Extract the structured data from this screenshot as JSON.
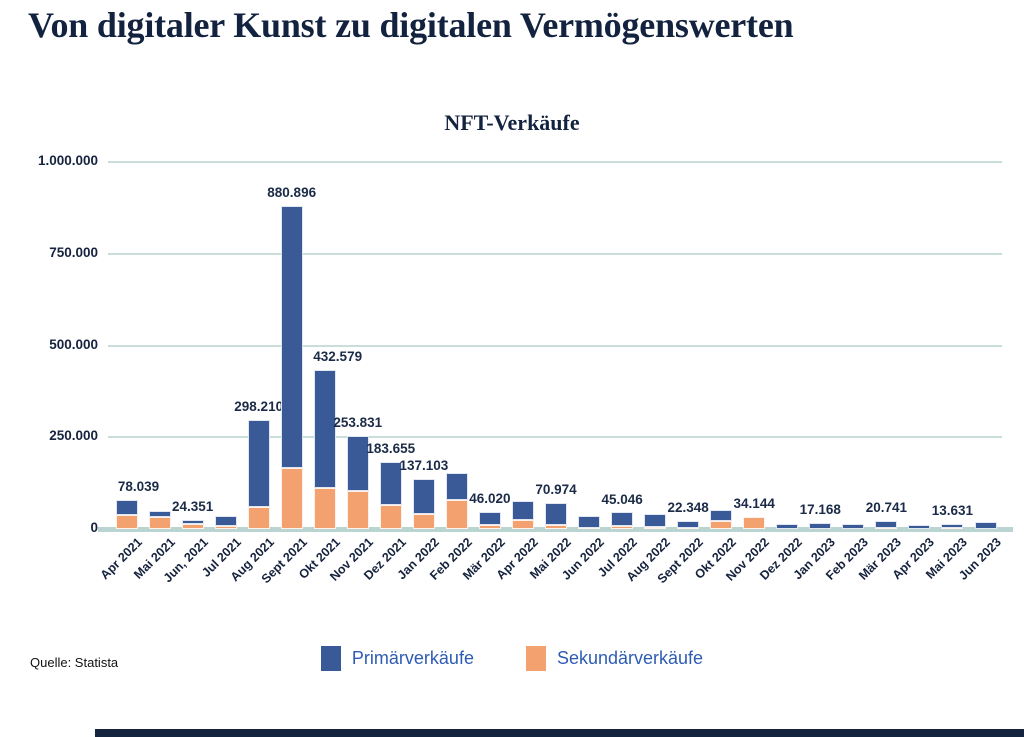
{
  "page": {
    "title": "Von digitaler Kunst zu digitalen Vermögenswerten",
    "source": "Quelle: Statista"
  },
  "colors": {
    "primary_bar": "#3a5a97",
    "secondary_bar": "#f2a16f",
    "title_text": "#13233f",
    "grid_line": "#c9dedb",
    "axis_line": "#b9d4d1",
    "legend_text": "#2e5cb4",
    "footer_bar": "#14243e"
  },
  "chart_data": {
    "type": "bar",
    "stacked": true,
    "title": "NFT-Verkäufe",
    "xlabel": "",
    "ylabel": "",
    "ylim": [
      0,
      1000000
    ],
    "grid": true,
    "legend_position": "bottom",
    "y_ticks": [
      "0",
      "250.000",
      "500.000",
      "750.000",
      "1.000.000"
    ],
    "categories": [
      "Apr 2021",
      "Mai 2021",
      "Jun, 2021",
      "Jul 2021",
      "Aug 2021",
      "Sept 2021",
      "Okt 2021",
      "Nov 2021",
      "Dez 2021",
      "Jan 2022",
      "Feb 2022",
      "Mär 2022",
      "Apr 2022",
      "Mai 2022",
      "Jun 2022",
      "Jul 2022",
      "Aug 2022",
      "Sept 2022",
      "Okt 2022",
      "Nov 2022",
      "Dez 2022",
      "Jan 2023",
      "Feb 2023",
      "Mär 2023",
      "Apr 2023",
      "Mai 2023",
      "Jun 2023"
    ],
    "series": [
      {
        "name": "Primärverkäufe",
        "color": "#3a5a97",
        "values": [
          39039,
          17000,
          9351,
          27000,
          237210,
          715896,
          320579,
          149831,
          118655,
          97103,
          75000,
          34020,
          50000,
          59974,
          32000,
          38046,
          36000,
          20848,
          31000,
          0,
          15000,
          17168,
          14000,
          16741,
          10000,
          11631,
          18000
        ]
      },
      {
        "name": "Sekundärverkäufe",
        "color": "#f2a16f",
        "values": [
          39000,
          32000,
          15000,
          8000,
          61000,
          165000,
          112000,
          104000,
          65000,
          40000,
          78000,
          12000,
          26000,
          11000,
          3000,
          7000,
          6000,
          1500,
          22000,
          34144,
          0,
          0,
          0,
          4000,
          0,
          2000,
          0
        ]
      }
    ],
    "bar_totals": [
      78039,
      49000,
      24351,
      35000,
      298210,
      880896,
      432579,
      253831,
      183655,
      137103,
      153000,
      46020,
      76000,
      70974,
      35000,
      45046,
      42000,
      22348,
      53000,
      34144,
      15000,
      17168,
      14000,
      20741,
      10000,
      13631,
      18000
    ],
    "bar_labels": [
      "78.039",
      null,
      "24.351",
      null,
      "298.210",
      "880.896",
      "432.579",
      "253.831",
      "183.655",
      "137.103",
      null,
      "46.020",
      null,
      "70.974",
      null,
      "45.046",
      null,
      "22.348",
      null,
      "34.144",
      null,
      "17.168",
      null,
      "20.741",
      null,
      "13.631",
      null
    ]
  }
}
